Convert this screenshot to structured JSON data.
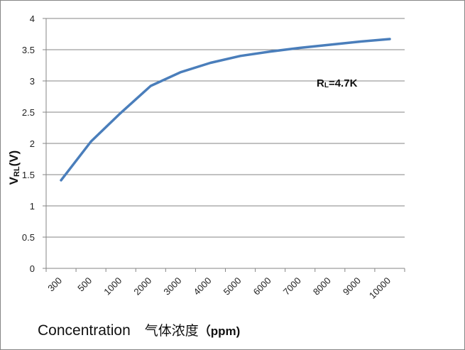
{
  "chart_data": {
    "type": "line",
    "categories": [
      "300",
      "500",
      "1000",
      "2000",
      "3000",
      "4000",
      "5000",
      "6000",
      "7000",
      "8000",
      "9000",
      "10000"
    ],
    "series": [
      {
        "values": [
          1.41,
          2.03,
          2.49,
          2.92,
          3.14,
          3.29,
          3.4,
          3.47,
          3.53,
          3.58,
          3.63,
          3.67
        ]
      }
    ],
    "ylim": [
      0,
      4
    ],
    "yticks": [
      "0",
      "0.5",
      "1",
      "1.5",
      "2",
      "2.5",
      "3",
      "3.5",
      "4"
    ],
    "ylabel": {
      "main": "V",
      "sub": "RL",
      "suffix": "(V)"
    },
    "xlabel": {
      "en": "Concentration",
      "zh": "气体浓度",
      "unit": "（ppm)"
    },
    "annotation": {
      "main": "R",
      "sub": "L",
      "suffix": "=4.7K"
    },
    "grid": "horizontal",
    "line_color": "#4A7EBB",
    "grid_color": "#868686"
  }
}
